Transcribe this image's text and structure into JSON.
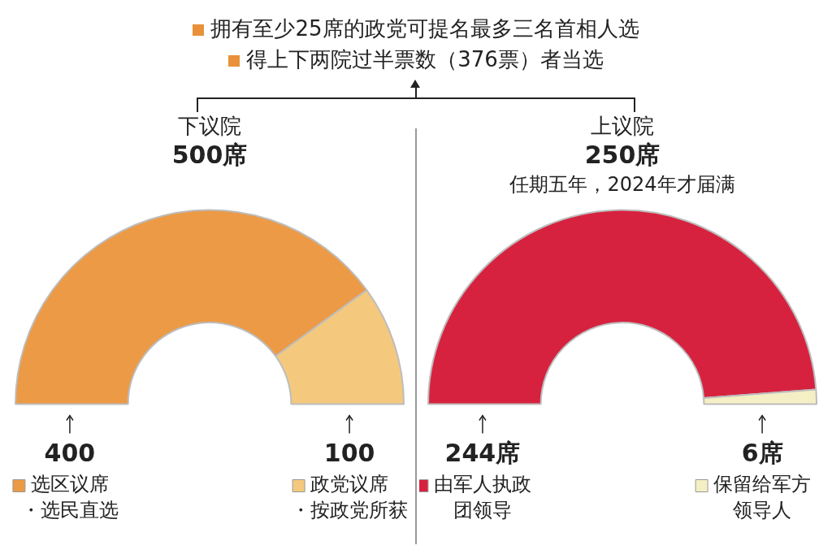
{
  "chart_data": [
    {
      "type": "other",
      "annotations": [
        "拥有至少25席的政党可提名最多三名首相人选",
        "得上下两院过半票数（376票）者当选"
      ]
    },
    {
      "type": "donut",
      "title": "下议院",
      "subtitle": "500席",
      "categories": [
        "选区议席",
        "政党议席"
      ],
      "values": [
        400,
        100
      ],
      "colors": [
        "#ec9a45",
        "#f4c97e"
      ],
      "value_labels": [
        "400",
        "100"
      ],
      "annotations": [
        "・选民直选",
        "・按政党所获"
      ],
      "legend": "bottom"
    },
    {
      "type": "donut",
      "title": "上议院",
      "subtitle": "250席",
      "categories": [
        "由军人执政团领导",
        "保留给军方领导人"
      ],
      "values": [
        244,
        6
      ],
      "colors": [
        "#d7223f",
        "#f4efc4"
      ],
      "value_labels": [
        "244席",
        "6席"
      ],
      "annotations": [
        "任期五年，2024年才届满"
      ],
      "legend": "bottom"
    }
  ]
}
